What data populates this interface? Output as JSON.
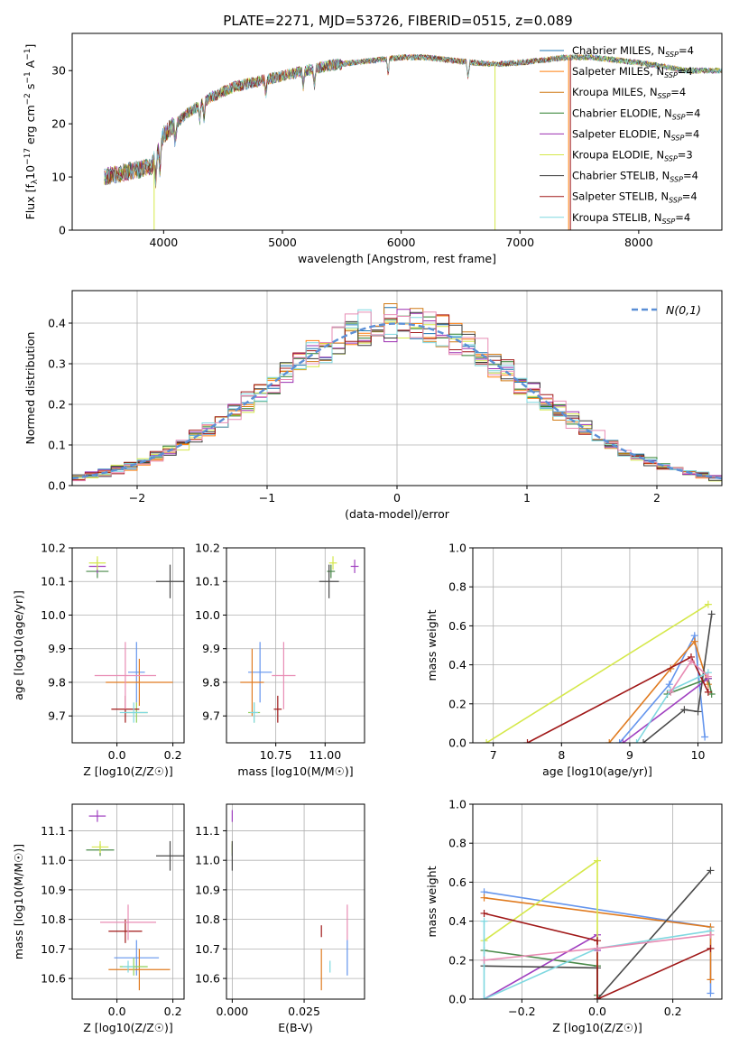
{
  "chart_data": [
    {
      "type": "line",
      "title": "PLATE=2271, MJD=53726, FIBERID=0515, z=0.089",
      "xlabel": "wavelength [Angstrom, rest frame]",
      "ylabel": "Flux [f_λ 10^-17 erg cm^-2 s^-1 A^-1]",
      "xlim": [
        3230,
        8700
      ],
      "ylim": [
        0,
        37
      ],
      "xticks": [
        4000,
        5000,
        6000,
        7000,
        8000
      ],
      "yticks": [
        0,
        10,
        20,
        30
      ],
      "grid": false,
      "legend_position": "top-right",
      "series": [
        {
          "name": "Chabrier MILES, N_SSP=4",
          "color": "#1f77b4"
        },
        {
          "name": "Salpeter MILES, N_SSP=4",
          "color": "#ff7f0e"
        },
        {
          "name": "Kroupa MILES, N_SSP=4",
          "color": "#d17a15"
        },
        {
          "name": "Chabrier ELODIE, N_SSP=4",
          "color": "#2a7d2a"
        },
        {
          "name": "Salpeter ELODIE, N_SSP=4",
          "color": "#9b2fb0"
        },
        {
          "name": "Kroupa ELODIE, N_SSP=3",
          "color": "#d5e84a"
        },
        {
          "name": "Chabrier STELIB, N_SSP=4",
          "color": "#3a3a3a"
        },
        {
          "name": "Salpeter STELIB, N_SSP=4",
          "color": "#a01818"
        },
        {
          "name": "Kroupa STELIB, N_SSP=4",
          "color": "#7fd8e0"
        }
      ],
      "continuum": {
        "x": [
          3500,
          3700,
          3900,
          4000,
          4200,
          4400,
          4600,
          4800,
          5000,
          5200,
          5400,
          5600,
          5800,
          6000,
          6200,
          6400,
          6600,
          6800,
          7000,
          7200,
          7400,
          7600,
          7800,
          8000,
          8200,
          8400
        ],
        "y": [
          10,
          11,
          12,
          18,
          22,
          25,
          27,
          28,
          29,
          30,
          31,
          31.5,
          32,
          32.5,
          32.5,
          32,
          31.5,
          31.2,
          31.5,
          32,
          32.5,
          32.5,
          32,
          31.5,
          30.8,
          30
        ]
      }
    },
    {
      "type": "line",
      "xlabel": "(data-model)/error",
      "ylabel": "Normed distribution",
      "xlim": [
        -2.5,
        2.5
      ],
      "ylim": [
        0,
        0.48
      ],
      "xticks": [
        -2,
        -1,
        0,
        1,
        2
      ],
      "yticks": [
        0.0,
        0.1,
        0.2,
        0.3,
        0.4
      ],
      "grid": true,
      "legend_position": "top-right",
      "legend": "N(0,1)"
    },
    {
      "type": "scatter",
      "xlabel": "Z [log10(Z/Z☉)]",
      "ylabel": "age  [log10(age/yr)]",
      "xlim": [
        -0.16,
        0.24
      ],
      "ylim": [
        9.62,
        10.2
      ],
      "xticks": [
        0.0,
        0.2
      ],
      "yticks": [
        9.7,
        9.8,
        9.9,
        10.0,
        10.1,
        10.2
      ],
      "grid": true,
      "points": [
        {
          "x": 0.07,
          "y": 9.83,
          "xerr": 0.03,
          "yerr": 0.09,
          "color": "#6495ed"
        },
        {
          "x": 0.08,
          "y": 9.8,
          "xerr": 0.12,
          "yerr": 0.07,
          "color": "#e07b20"
        },
        {
          "x": 0.07,
          "y": 9.71,
          "xerr": 0.04,
          "yerr": 0.03,
          "color": "#8fd05a"
        },
        {
          "x": -0.07,
          "y": 10.13,
          "xerr": 0.04,
          "yerr": 0.02,
          "color": "#4a8a4a"
        },
        {
          "x": -0.07,
          "y": 10.145,
          "xerr": 0.03,
          "yerr": 0.02,
          "color": "#a040c0"
        },
        {
          "x": -0.07,
          "y": 10.155,
          "xerr": 0.03,
          "yerr": 0.02,
          "color": "#d5e84a"
        },
        {
          "x": 0.19,
          "y": 10.1,
          "xerr": 0.05,
          "yerr": 0.05,
          "color": "#4a4a4a"
        },
        {
          "x": 0.03,
          "y": 9.72,
          "xerr": 0.05,
          "yerr": 0.04,
          "color": "#a01818"
        },
        {
          "x": 0.06,
          "y": 9.71,
          "xerr": 0.05,
          "yerr": 0.03,
          "color": "#7fd8e0"
        },
        {
          "x": 0.03,
          "y": 9.82,
          "xerr": 0.11,
          "yerr": 0.1,
          "color": "#e88cb4"
        }
      ]
    },
    {
      "type": "scatter",
      "xlabel": "mass [log10(M/M☉)]",
      "xlim": [
        10.5,
        11.2
      ],
      "ylim": [
        9.62,
        10.2
      ],
      "xticks": [
        10.75,
        11.0
      ],
      "yticks": [
        9.7,
        9.8,
        9.9,
        10.0,
        10.1,
        10.2
      ],
      "grid": true,
      "points": [
        {
          "x": 10.67,
          "y": 9.83,
          "xerr": 0.06,
          "yerr": 0.09,
          "color": "#6495ed"
        },
        {
          "x": 10.63,
          "y": 9.8,
          "xerr": 0.06,
          "yerr": 0.1,
          "color": "#e07b20"
        },
        {
          "x": 10.64,
          "y": 9.71,
          "xerr": 0.03,
          "yerr": 0.03,
          "color": "#8fd05a"
        },
        {
          "x": 11.03,
          "y": 10.13,
          "xerr": 0.02,
          "yerr": 0.02,
          "color": "#4a8a4a"
        },
        {
          "x": 11.15,
          "y": 10.145,
          "xerr": 0.02,
          "yerr": 0.02,
          "color": "#a040c0"
        },
        {
          "x": 11.04,
          "y": 10.155,
          "xerr": 0.02,
          "yerr": 0.02,
          "color": "#d5e84a"
        },
        {
          "x": 11.02,
          "y": 10.1,
          "xerr": 0.05,
          "yerr": 0.05,
          "color": "#4a4a4a"
        },
        {
          "x": 10.76,
          "y": 9.72,
          "xerr": 0.02,
          "yerr": 0.04,
          "color": "#a01818"
        },
        {
          "x": 10.64,
          "y": 9.71,
          "xerr": 0.02,
          "yerr": 0.03,
          "color": "#7fd8e0"
        },
        {
          "x": 10.79,
          "y": 9.82,
          "xerr": 0.06,
          "yerr": 0.1,
          "color": "#e88cb4"
        }
      ]
    },
    {
      "type": "line",
      "xlabel": "age  [log10(age/yr)]",
      "ylabel": "mass weight",
      "xlim": [
        6.7,
        10.35
      ],
      "ylim": [
        0,
        1.0
      ],
      "xticks": [
        7,
        8,
        9,
        10
      ],
      "yticks": [
        0.0,
        0.2,
        0.4,
        0.6,
        0.8,
        1.0
      ],
      "grid": true,
      "series": [
        {
          "color": "#6495ed",
          "x": [
            8.85,
            9.58,
            9.95,
            10.1
          ],
          "y": [
            0.0,
            0.3,
            0.55,
            0.03
          ]
        },
        {
          "color": "#e07b20",
          "x": [
            8.7,
            9.6,
            9.95,
            10.15
          ],
          "y": [
            0.0,
            0.38,
            0.52,
            0.3
          ]
        },
        {
          "color": "#4a8a4a",
          "x": [
            9.55,
            10.15,
            10.2
          ],
          "y": [
            0.25,
            0.33,
            0.25
          ]
        },
        {
          "color": "#a040c0",
          "x": [
            8.9,
            10.15
          ],
          "y": [
            0.0,
            0.33
          ]
        },
        {
          "color": "#d5e84a",
          "x": [
            6.9,
            10.15
          ],
          "y": [
            0.0,
            0.71
          ]
        },
        {
          "color": "#4a4a4a",
          "x": [
            9.2,
            9.8,
            10.0,
            10.2
          ],
          "y": [
            0.0,
            0.17,
            0.16,
            0.66
          ]
        },
        {
          "color": "#a01818",
          "x": [
            7.5,
            9.9,
            10.15
          ],
          "y": [
            0.0,
            0.44,
            0.26
          ]
        },
        {
          "color": "#7fd8e0",
          "x": [
            9.1,
            9.6,
            10.15
          ],
          "y": [
            0.0,
            0.27,
            0.36
          ]
        },
        {
          "color": "#e88cb4",
          "x": [
            9.6,
            9.9,
            10.15
          ],
          "y": [
            0.26,
            0.42,
            0.34
          ]
        }
      ]
    },
    {
      "type": "scatter",
      "xlabel": "Z [log10(Z/Z☉)]",
      "ylabel": "mass [log10(M/M☉)]",
      "xlim": [
        -0.16,
        0.24
      ],
      "ylim": [
        10.53,
        11.19
      ],
      "xticks": [
        0.0,
        0.2
      ],
      "yticks": [
        10.6,
        10.7,
        10.8,
        10.9,
        11.0,
        11.1
      ],
      "grid": true,
      "points": [
        {
          "x": 0.07,
          "y": 10.67,
          "xerr": 0.08,
          "yerr": 0.06,
          "color": "#6495ed"
        },
        {
          "x": 0.08,
          "y": 10.63,
          "xerr": 0.11,
          "yerr": 0.07,
          "color": "#e07b20"
        },
        {
          "x": 0.06,
          "y": 10.64,
          "xerr": 0.05,
          "yerr": 0.03,
          "color": "#8fd05a"
        },
        {
          "x": -0.06,
          "y": 11.035,
          "xerr": 0.05,
          "yerr": 0.02,
          "color": "#4a8a4a"
        },
        {
          "x": -0.07,
          "y": 11.15,
          "xerr": 0.03,
          "yerr": 0.02,
          "color": "#a040c0"
        },
        {
          "x": -0.06,
          "y": 11.045,
          "xerr": 0.03,
          "yerr": 0.02,
          "color": "#d5e84a"
        },
        {
          "x": 0.19,
          "y": 11.015,
          "xerr": 0.05,
          "yerr": 0.05,
          "color": "#4a4a4a"
        },
        {
          "x": 0.03,
          "y": 10.76,
          "xerr": 0.06,
          "yerr": 0.04,
          "color": "#a01818"
        },
        {
          "x": 0.04,
          "y": 10.64,
          "xerr": 0.02,
          "yerr": 0.02,
          "color": "#7fd8e0"
        },
        {
          "x": 0.04,
          "y": 10.79,
          "xerr": 0.1,
          "yerr": 0.06,
          "color": "#e88cb4"
        }
      ]
    },
    {
      "type": "scatter",
      "xlabel": "E(B-V)",
      "xlim": [
        -0.002,
        0.046
      ],
      "ylim": [
        10.53,
        11.19
      ],
      "xticks": [
        0.0,
        0.025
      ],
      "yticks": [
        10.6,
        10.7,
        10.8,
        10.9,
        11.0,
        11.1
      ],
      "grid": true,
      "points": [
        {
          "x": 0.0,
          "y": 11.035,
          "yerr": 0.02,
          "color": "#4a8a4a"
        },
        {
          "x": 0.0,
          "y": 11.15,
          "yerr": 0.02,
          "color": "#a040c0"
        },
        {
          "x": 0.0,
          "y": 11.045,
          "yerr": 0.02,
          "color": "#d5e84a"
        },
        {
          "x": 0.0,
          "y": 11.015,
          "yerr": 0.05,
          "color": "#4a4a4a"
        },
        {
          "x": 0.031,
          "y": 10.76,
          "yerr": 0.02,
          "color": "#a01818"
        },
        {
          "x": 0.031,
          "y": 10.63,
          "yerr": 0.07,
          "color": "#e07b20"
        },
        {
          "x": 0.034,
          "y": 10.64,
          "yerr": 0.02,
          "color": "#7fd8e0"
        },
        {
          "x": 0.04,
          "y": 10.67,
          "yerr": 0.06,
          "color": "#6495ed"
        },
        {
          "x": 0.04,
          "y": 10.79,
          "yerr": 0.06,
          "color": "#e88cb4"
        }
      ]
    },
    {
      "type": "line",
      "xlabel": "Z [log10(Z/Z☉)]",
      "ylabel": "mass weight",
      "xlim": [
        -0.33,
        0.33
      ],
      "ylim": [
        0,
        1.0
      ],
      "xticks": [
        -0.2,
        0.0,
        0.2
      ],
      "yticks": [
        0.0,
        0.2,
        0.4,
        0.6,
        0.8,
        1.0
      ],
      "grid": true,
      "series": [
        {
          "color": "#6495ed",
          "x": [
            -0.3,
            0.3,
            0.3
          ],
          "y": [
            0.55,
            0.37,
            0.03
          ]
        },
        {
          "color": "#e07b20",
          "x": [
            -0.3,
            0.3,
            0.3
          ],
          "y": [
            0.52,
            0.37,
            0.1
          ]
        },
        {
          "color": "#4a8a4a",
          "x": [
            -0.3,
            0.0,
            0.0
          ],
          "y": [
            0.25,
            0.17,
            0.02
          ]
        },
        {
          "color": "#a040c0",
          "x": [
            -0.3,
            0.0,
            0.0
          ],
          "y": [
            0.0,
            0.33,
            0.25
          ]
        },
        {
          "color": "#d5e84a",
          "x": [
            -0.3,
            0.0,
            0.0
          ],
          "y": [
            0.3,
            0.71,
            0.0
          ]
        },
        {
          "color": "#4a4a4a",
          "x": [
            -0.3,
            0.0,
            0.0,
            0.3
          ],
          "y": [
            0.17,
            0.16,
            0.0,
            0.66
          ]
        },
        {
          "color": "#a01818",
          "x": [
            -0.3,
            0.0,
            0.0,
            0.3
          ],
          "y": [
            0.44,
            0.3,
            0.0,
            0.26
          ]
        },
        {
          "color": "#7fd8e0",
          "x": [
            -0.3,
            -0.3,
            0.0,
            0.3
          ],
          "y": [
            0.4,
            0.0,
            0.26,
            0.35
          ]
        },
        {
          "color": "#e88cb4",
          "x": [
            -0.3,
            0.0,
            0.3
          ],
          "y": [
            0.2,
            0.26,
            0.33
          ]
        }
      ]
    }
  ]
}
